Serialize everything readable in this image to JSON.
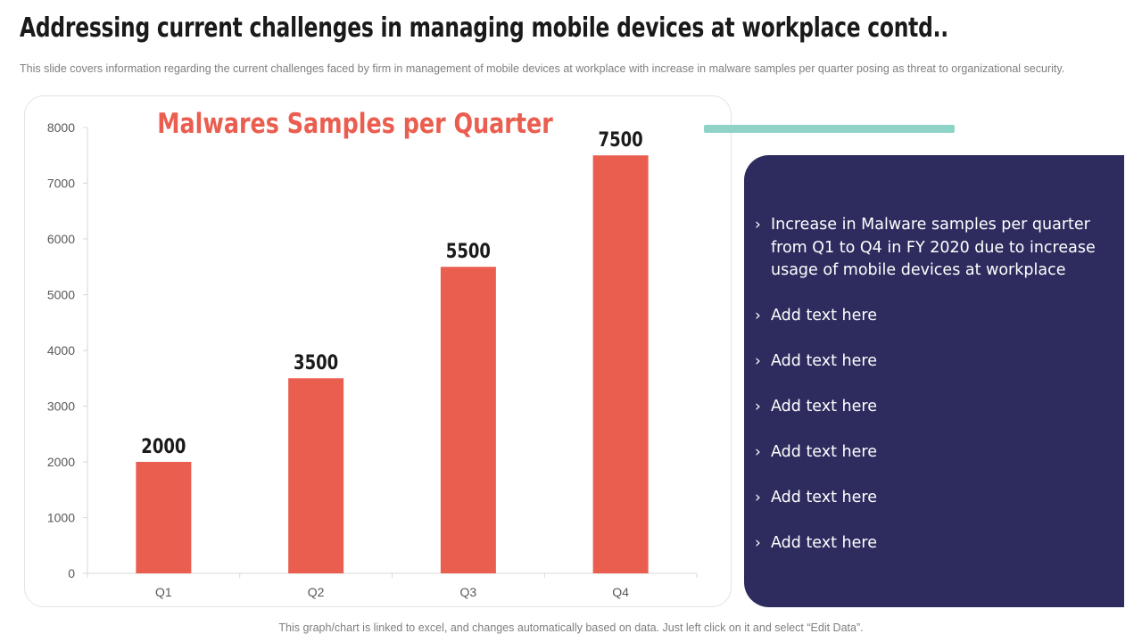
{
  "title": "Addressing current challenges in managing mobile devices at workplace contd..",
  "subtitle": "This slide covers information regarding the current challenges faced by firm in management of mobile devices at workplace with increase in malware samples per quarter posing as threat to organizational security.",
  "chart_data": {
    "type": "bar",
    "title": "Malwares Samples per Quarter",
    "categories": [
      "Q1",
      "Q2",
      "Q3",
      "Q4"
    ],
    "values": [
      2000,
      3500,
      5500,
      7500
    ],
    "data_labels": [
      "2000",
      "3500",
      "5500",
      "7500"
    ],
    "yticks": [
      0,
      1000,
      2000,
      3000,
      4000,
      5000,
      6000,
      7000,
      8000
    ],
    "ylim": [
      0,
      8000
    ],
    "xlabel": "",
    "ylabel": "",
    "bar_color": "#ea5e50",
    "grid": false
  },
  "panel": {
    "bullets": [
      "Increase in Malware samples per quarter from Q1 to Q4 in FY 2020 due to increase usage of mobile devices at workplace",
      "Add text here",
      "Add text here",
      "Add text here",
      "Add text here",
      "Add text here",
      "Add text here"
    ],
    "bullet_glyph": "›",
    "background": "#2e2c5e",
    "accent": "#8fd3c7"
  },
  "footer": "This graph/chart is linked to excel, and changes automatically based on data. Just left click on it and select “Edit Data”."
}
